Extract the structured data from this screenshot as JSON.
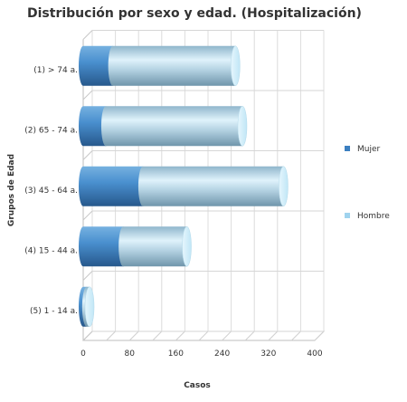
{
  "chart_data": {
    "type": "bar",
    "orientation": "horizontal",
    "stacked": true,
    "style": "3d-cylinder",
    "title": "Distribución por sexo y edad. (Hospitalización)",
    "xlabel": "Casos",
    "ylabel": "Grupos de Edad",
    "categories": [
      "(1) > 74 a.",
      "(2) 65 - 74 a.",
      "(3) 45 - 64 a.",
      "(4) 15 - 44 a.",
      "(5) 1 - 14 a."
    ],
    "xlim": [
      0,
      400
    ],
    "xticks": [
      0,
      80,
      160,
      240,
      320,
      400
    ],
    "grid": true,
    "legend_position": "right",
    "series": [
      {
        "name": "Mujer",
        "values": [
          51,
          39,
          103,
          69,
          6
        ],
        "color": "#3c7fc0"
      },
      {
        "name": "Hombre",
        "values": [
          212,
          236,
          243,
          110,
          5
        ],
        "color": "#9fd3ee"
      }
    ]
  }
}
